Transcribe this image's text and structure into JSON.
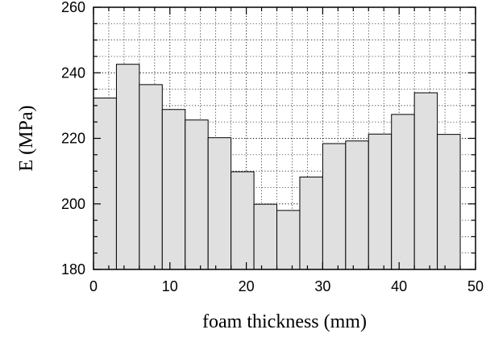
{
  "chart_data": {
    "type": "bar",
    "title": "",
    "xlabel": "foam thickness (mm)",
    "ylabel": "E (MPa)",
    "xlim": [
      0,
      50
    ],
    "ylim": [
      180,
      260
    ],
    "x_major_ticks": [
      0,
      10,
      20,
      30,
      40,
      50
    ],
    "y_major_ticks": [
      180,
      200,
      220,
      240,
      260
    ],
    "x_minor_step": 2,
    "y_minor_step": 5,
    "grid": "dotted major and minor",
    "bar_color": "#e0e0e0",
    "bar_edge_color": "#000000",
    "bin_width": 3,
    "x": [
      1.5,
      4.5,
      7.5,
      10.5,
      13.5,
      16.5,
      19.5,
      22.5,
      25.5,
      28.5,
      31.5,
      34.5,
      37.5,
      40.5,
      43.5,
      46.5,
      49.5
    ],
    "values": [
      232.3,
      242.6,
      236.4,
      228.8,
      225.6,
      220.2,
      209.8,
      199.9,
      198.0,
      208.2,
      218.4,
      219.2,
      221.3,
      227.3,
      233.9,
      221.2,
      0
    ]
  }
}
